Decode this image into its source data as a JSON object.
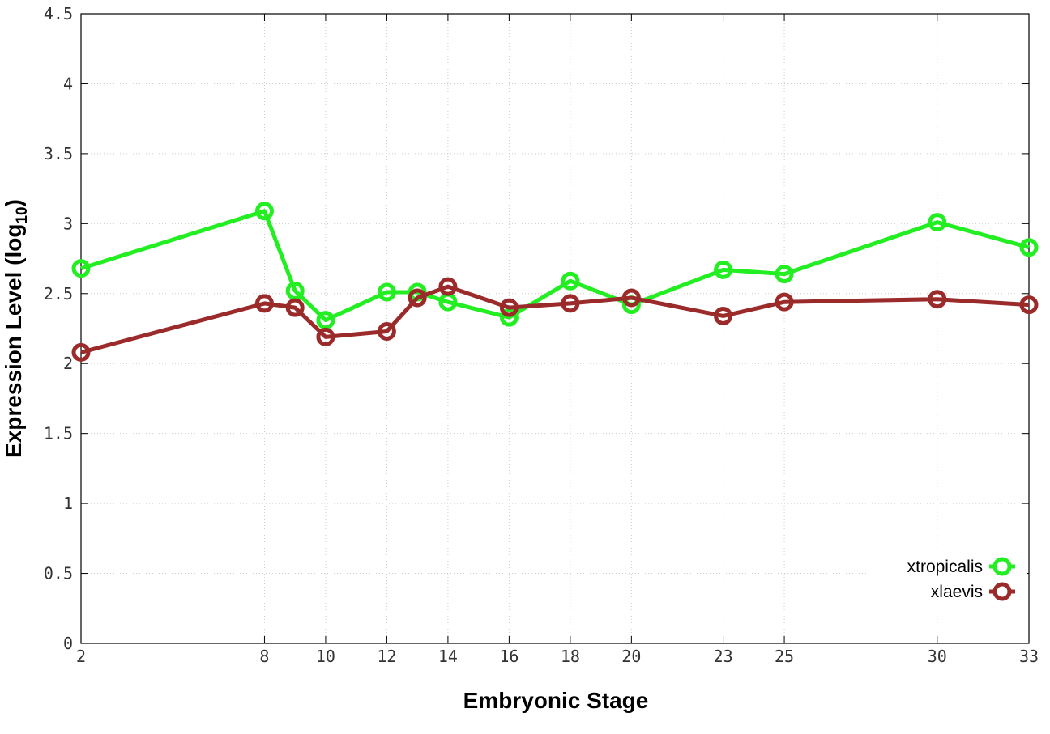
{
  "chart_data": {
    "type": "line",
    "title": "",
    "xlabel": "Embryonic Stage",
    "ylabel_main": "Expression Level (log",
    "ylabel_sub": "10",
    "ylabel_close": ")",
    "xlim": [
      2,
      33
    ],
    "ylim": [
      0,
      4.5
    ],
    "x_ticks": [
      2,
      8,
      10,
      12,
      14,
      16,
      18,
      20,
      23,
      25,
      30,
      33
    ],
    "x_tick_labels": [
      "2",
      "8",
      "10",
      "12",
      "14",
      "16",
      "18",
      "20",
      "23",
      "25",
      "30",
      "33"
    ],
    "y_ticks": [
      0,
      0.5,
      1,
      1.5,
      2,
      2.5,
      3,
      3.5,
      4,
      4.5
    ],
    "y_tick_labels": [
      "0",
      "0.5",
      "1",
      "1.5",
      "2",
      "2.5",
      "3",
      "3.5",
      "4",
      "4.5"
    ],
    "grid": true,
    "legend_position": "bottom-right",
    "series": [
      {
        "name": "xtropicalis",
        "color": "#22ee22",
        "x": [
          2,
          8,
          9,
          10,
          12,
          13,
          14,
          16,
          18,
          20,
          23,
          25,
          30,
          33
        ],
        "y": [
          2.68,
          3.09,
          2.52,
          2.31,
          2.51,
          2.51,
          2.44,
          2.33,
          2.59,
          2.42,
          2.67,
          2.64,
          3.01,
          2.83
        ]
      },
      {
        "name": "xlaevis",
        "color": "#9b2a2a",
        "x": [
          2,
          8,
          9,
          10,
          12,
          13,
          14,
          16,
          18,
          20,
          23,
          25,
          30,
          33
        ],
        "y": [
          2.08,
          2.43,
          2.4,
          2.19,
          2.23,
          2.47,
          2.55,
          2.4,
          2.43,
          2.47,
          2.34,
          2.44,
          2.46,
          2.42
        ]
      }
    ]
  }
}
